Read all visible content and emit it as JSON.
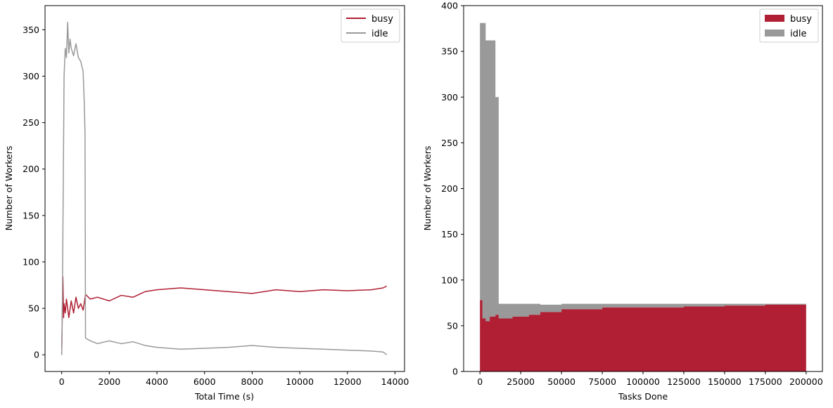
{
  "chart_data": [
    {
      "type": "line",
      "title": "",
      "xlabel": "Total Time (s)",
      "ylabel": "Number of Workers",
      "xlim": [
        -700,
        14400
      ],
      "ylim": [
        -18,
        376
      ],
      "xticks": [
        0,
        2000,
        4000,
        6000,
        8000,
        10000,
        12000,
        14000
      ],
      "xtick_labels": [
        "0",
        "2000",
        "4000",
        "6000",
        "8000",
        "10000",
        "12000",
        "14000"
      ],
      "yticks": [
        0,
        50,
        100,
        150,
        200,
        250,
        300,
        350
      ],
      "ytick_labels": [
        "0",
        "50",
        "100",
        "150",
        "200",
        "250",
        "300",
        "350"
      ],
      "legend": {
        "position": "top-right",
        "entries": [
          "busy",
          "idle"
        ]
      },
      "series": [
        {
          "name": "busy",
          "color": "#b01f33",
          "x": [
            0,
            50,
            80,
            100,
            150,
            200,
            300,
            400,
            500,
            600,
            700,
            800,
            900,
            1000,
            1200,
            1500,
            2000,
            2500,
            3000,
            3500,
            4000,
            5000,
            6000,
            7000,
            8000,
            9000,
            10000,
            11000,
            12000,
            13000,
            13500,
            13650
          ],
          "values": [
            0,
            84,
            40,
            55,
            45,
            60,
            40,
            58,
            45,
            62,
            50,
            55,
            48,
            65,
            60,
            62,
            58,
            64,
            62,
            68,
            70,
            72,
            70,
            68,
            66,
            70,
            68,
            70,
            69,
            70,
            72,
            74
          ]
        },
        {
          "name": "idle",
          "color": "#999999",
          "x": [
            0,
            30,
            100,
            150,
            200,
            250,
            300,
            350,
            400,
            500,
            600,
            700,
            800,
            900,
            950,
            980,
            1000,
            1200,
            1500,
            2000,
            2500,
            3000,
            3500,
            4000,
            5000,
            6000,
            7000,
            8000,
            9000,
            10000,
            11000,
            12000,
            13000,
            13500,
            13650
          ],
          "values": [
            0,
            60,
            300,
            330,
            320,
            358,
            325,
            340,
            330,
            322,
            335,
            320,
            316,
            305,
            270,
            238,
            18,
            15,
            12,
            15,
            12,
            14,
            10,
            8,
            6,
            7,
            8,
            10,
            8,
            7,
            6,
            5,
            4,
            3,
            0
          ]
        }
      ]
    },
    {
      "type": "area",
      "title": "",
      "xlabel": "Tasks Done",
      "ylabel": "Number of Workers",
      "xlim": [
        -10000,
        210000
      ],
      "ylim": [
        0,
        400
      ],
      "xticks": [
        0,
        25000,
        50000,
        75000,
        100000,
        125000,
        150000,
        175000,
        200000
      ],
      "xtick_labels": [
        "0",
        "25000",
        "50000",
        "75000",
        "100000",
        "125000",
        "150000",
        "175000",
        "200000"
      ],
      "yticks": [
        0,
        50,
        100,
        150,
        200,
        250,
        300,
        350,
        400
      ],
      "ytick_labels": [
        "0",
        "50",
        "100",
        "150",
        "200",
        "250",
        "300",
        "350",
        "400"
      ],
      "legend": {
        "position": "top-right",
        "entries": [
          "busy",
          "idle"
        ]
      },
      "stacked": true,
      "x": [
        0,
        1500,
        3500,
        6000,
        9500,
        11500,
        20000,
        30000,
        37000,
        50000,
        75000,
        100000,
        125000,
        150000,
        175000,
        200000
      ],
      "series": [
        {
          "name": "busy",
          "color": "#b01f33",
          "values": [
            78,
            58,
            55,
            60,
            62,
            58,
            60,
            62,
            65,
            68,
            70,
            70,
            71,
            72,
            73,
            74
          ]
        },
        {
          "name": "idle",
          "color": "#999999",
          "values": [
            303,
            323,
            307,
            302,
            238,
            16,
            14,
            12,
            8,
            6,
            4,
            4,
            3,
            2,
            1,
            0
          ]
        }
      ]
    }
  ]
}
